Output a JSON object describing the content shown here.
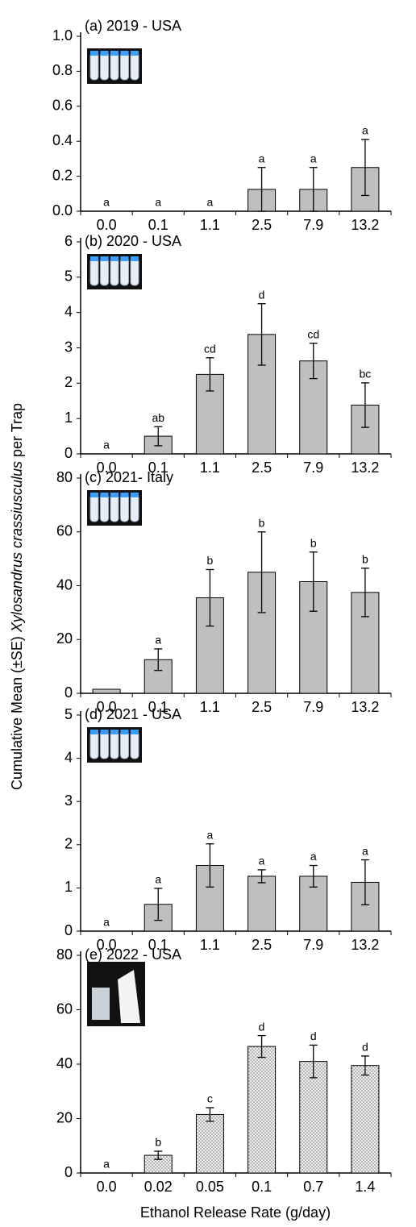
{
  "y_label": [
    "Cumulative Mean (±SE) ",
    "Xylosandrus crassiusculus",
    " per Trap"
  ],
  "x_label": "Ethanol Release Rate (g/day)",
  "chart_data": [
    {
      "type": "bar",
      "title": "(a) 2019 - USA",
      "categories": [
        "0.0",
        "0.1",
        "1.1",
        "2.5",
        "7.9",
        "13.2"
      ],
      "values": [
        0,
        0,
        0,
        0.125,
        0.125,
        0.25
      ],
      "errors": [
        0,
        0,
        0,
        0.125,
        0.125,
        0.16
      ],
      "letters": [
        "a",
        "a",
        "a",
        "a",
        "a",
        "a"
      ],
      "color": "#bfbfbf",
      "ylim": [
        0,
        1
      ],
      "yticks": [
        {
          "value": 0,
          "label": "0.0"
        },
        0.2,
        0.4,
        0.6,
        0.8,
        {
          "value": 1,
          "label": "1.0"
        }
      ]
    },
    {
      "type": "bar",
      "title": "(b) 2020 - USA",
      "categories": [
        "0.0",
        "0.1",
        "1.1",
        "2.5",
        "7.9",
        "13.2"
      ],
      "values": [
        0,
        0.5,
        2.25,
        3.38,
        2.63,
        1.38
      ],
      "errors": [
        0,
        0.27,
        0.47,
        0.87,
        0.5,
        0.63
      ],
      "letters": [
        "a",
        "ab",
        "cd",
        "d",
        "cd",
        "bc"
      ],
      "color": "#bfbfbf",
      "ylim": [
        0,
        6
      ],
      "yticks": [
        0,
        1,
        2,
        3,
        4,
        5,
        6
      ]
    },
    {
      "type": "bar",
      "title": "(c) 2021- Italy",
      "categories": [
        "0.0",
        "0.1",
        "1.1",
        "2.5",
        "7.9",
        "13.2"
      ],
      "values": [
        1.5,
        12.5,
        35.5,
        45,
        41.5,
        37.5
      ],
      "errors": [
        0,
        4,
        10.5,
        15,
        11,
        9
      ],
      "letters": [
        null,
        "a",
        "b",
        "b",
        "b",
        "b"
      ],
      "color": "#bfbfbf",
      "ylim": [
        0,
        80
      ],
      "yticks": [
        0,
        20,
        40,
        60,
        80
      ]
    },
    {
      "type": "bar",
      "title": "(d) 2021 - USA",
      "categories": [
        "0.0",
        "0.1",
        "1.1",
        "2.5",
        "7.9",
        "13.2"
      ],
      "values": [
        0,
        0.62,
        1.52,
        1.27,
        1.27,
        1.13
      ],
      "errors": [
        0,
        0.37,
        0.5,
        0.15,
        0.25,
        0.52
      ],
      "letters": [
        "a",
        "a",
        "a",
        "a",
        "a",
        "a"
      ],
      "color": "#bfbfbf",
      "ylim": [
        0,
        5
      ],
      "yticks": [
        0,
        1,
        2,
        3,
        4,
        5
      ]
    },
    {
      "type": "bar",
      "title": "(e) 2022 - USA",
      "categories": [
        "0.0",
        "0.02",
        "0.05",
        "0.1",
        "0.7",
        "1.4"
      ],
      "values": [
        0,
        6.5,
        21.5,
        46.5,
        41,
        39.5
      ],
      "errors": [
        0,
        1.5,
        2.5,
        4,
        6,
        3.5
      ],
      "letters": [
        "a",
        "b",
        "c",
        "d",
        "d",
        "d"
      ],
      "color": "#e6e6e6",
      "dotted": true,
      "ylim": [
        0,
        80
      ],
      "yticks": [
        0,
        20,
        40,
        60,
        80
      ]
    }
  ]
}
